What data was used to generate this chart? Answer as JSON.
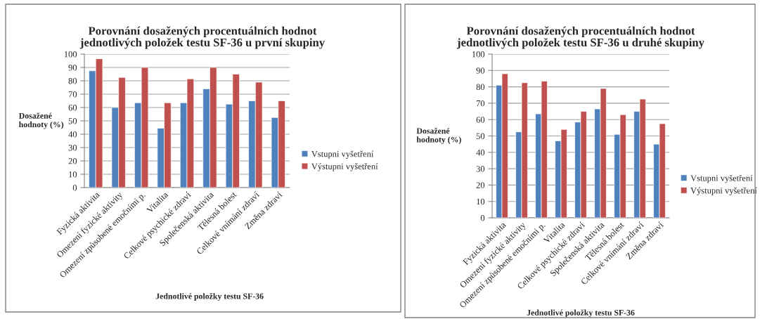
{
  "chart_data": [
    {
      "type": "bar",
      "title": "Porovnání dosažených procentuálních hodnot jednotlivých položek testu SF-36 u první skupiny",
      "xlabel": "Jednotlivé položky testu SF-36",
      "ylabel": "Dosažené hodnoty (%)",
      "categories": [
        "Fyzická aktivita",
        "Omezení fyzické aktivity",
        "Omezení způsobené emočními p.",
        "Vitalita",
        "Celkové psychické zdraví",
        "Společenská aktivita",
        "Tělesná bolest",
        "Celkové vnímání zdraví",
        "Změna zdraví"
      ],
      "series": [
        {
          "name": "Vstupni vyšetření",
          "color": "#4f81bd",
          "values": [
            87.5,
            60,
            63.5,
            44.5,
            63.5,
            74,
            62.5,
            65,
            52.5
          ]
        },
        {
          "name": "Výstupni vyšetření",
          "color": "#c0504d",
          "values": [
            96.5,
            82.5,
            90,
            63.5,
            81.5,
            90,
            85,
            79,
            65
          ]
        }
      ],
      "ylim": [
        0,
        100
      ],
      "yticks": [
        0,
        10,
        20,
        30,
        40,
        50,
        60,
        70,
        80,
        90,
        100
      ],
      "grid": "y",
      "legend": "right"
    },
    {
      "type": "bar",
      "title": "Porovnání dosažených procentuálních hodnot jednotlivých položek testu SF-36 u druhé skupiny",
      "xlabel": "Jednotlivé položky testu SF-36",
      "ylabel": "Dosažené hodnoty (%)",
      "categories": [
        "Fyzická aktivita",
        "Omezení fyzické aktivity",
        "Omezení způsobené emočními p.",
        "Vitalita",
        "Celkové psychické zdraví",
        "Společenská aktivita",
        "Tělesná bolest",
        "Celkové vnímání zdraví",
        "Změna zdraví"
      ],
      "series": [
        {
          "name": "Vstupni vyšetření",
          "color": "#4f81bd",
          "values": [
            81,
            52.5,
            63.5,
            47,
            58.5,
            66.5,
            51,
            65,
            45
          ]
        },
        {
          "name": "Výstupni vyšetření",
          "color": "#c0504d",
          "values": [
            88,
            82.5,
            83.5,
            54,
            65,
            79,
            63,
            72.5,
            57.5
          ]
        }
      ],
      "ylim": [
        0,
        100
      ],
      "yticks": [
        0,
        10,
        20,
        30,
        40,
        50,
        60,
        70,
        80,
        90,
        100
      ],
      "grid": "y",
      "legend": "right"
    }
  ]
}
